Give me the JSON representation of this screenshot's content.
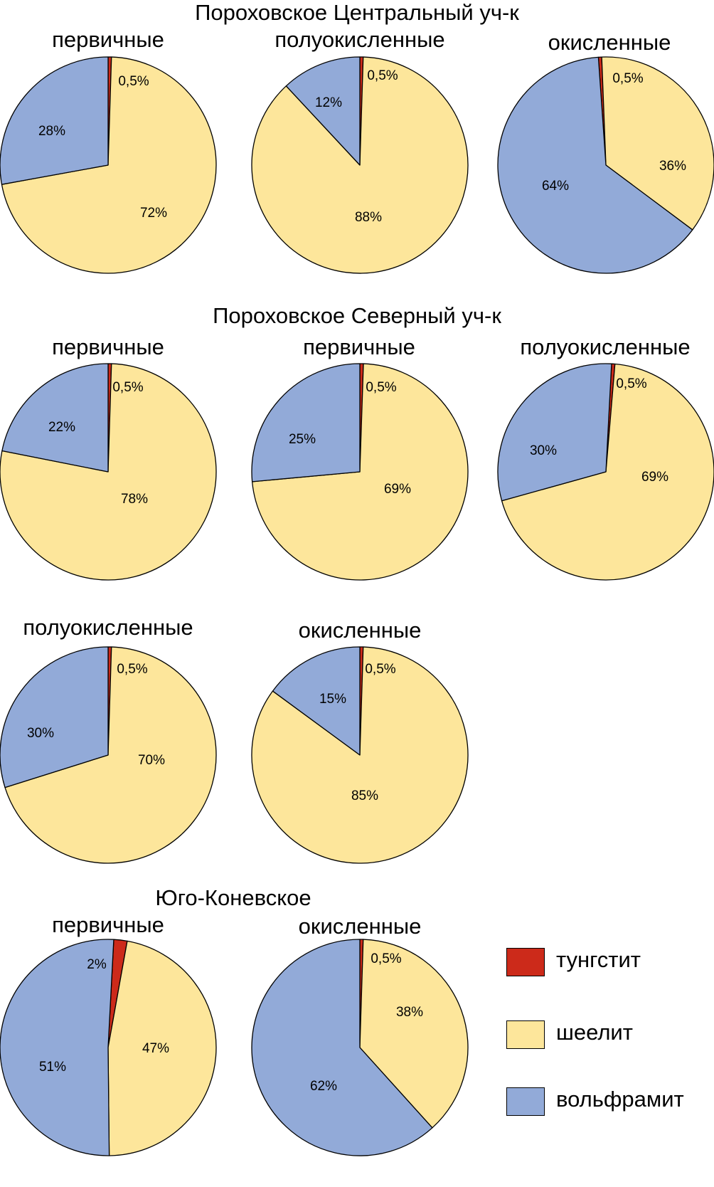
{
  "colors": {
    "tungstite": "#cc2a1a",
    "scheelite": "#fde69b",
    "wolframite": "#92aad8",
    "outline": "#000000"
  },
  "sections": [
    {
      "title": "Пороховское Центральный уч-к"
    },
    {
      "title": "Пороховское Северный уч-к"
    },
    {
      "title": "Юго-Коневское"
    }
  ],
  "legend": [
    {
      "key": "tungstite",
      "label": "тунгстит"
    },
    {
      "key": "scheelite",
      "label": "шеелит"
    },
    {
      "key": "wolframite",
      "label": "вольфрамит"
    }
  ],
  "chart_data": [
    {
      "type": "pie",
      "section": "Пороховское Центральный уч-к",
      "title": "первичные",
      "slices": [
        {
          "key": "tungstite",
          "value": 0.5,
          "label": "0,5%"
        },
        {
          "key": "scheelite",
          "value": 72,
          "label": "72%"
        },
        {
          "key": "wolframite",
          "value": 28,
          "label": "28%"
        }
      ]
    },
    {
      "type": "pie",
      "section": "Пороховское Центральный уч-к",
      "title": "полуокисленные",
      "slices": [
        {
          "key": "tungstite",
          "value": 0.5,
          "label": "0,5%"
        },
        {
          "key": "scheelite",
          "value": 88,
          "label": "88%"
        },
        {
          "key": "wolframite",
          "value": 12,
          "label": "12%"
        }
      ]
    },
    {
      "type": "pie",
      "section": "Пороховское Центральный уч-к",
      "title": "окисленные",
      "slices": [
        {
          "key": "tungstite",
          "value": 0.5,
          "label": "0,5%"
        },
        {
          "key": "scheelite",
          "value": 36,
          "label": "36%"
        },
        {
          "key": "wolframite",
          "value": 64,
          "label": "64%"
        }
      ]
    },
    {
      "type": "pie",
      "section": "Пороховское Северный уч-к",
      "title": "первичные",
      "slices": [
        {
          "key": "tungstite",
          "value": 0.5,
          "label": "0,5%"
        },
        {
          "key": "scheelite",
          "value": 78,
          "label": "78%"
        },
        {
          "key": "wolframite",
          "value": 22,
          "label": "22%"
        }
      ]
    },
    {
      "type": "pie",
      "section": "Пороховское Северный уч-к",
      "title": "первичные",
      "slices": [
        {
          "key": "tungstite",
          "value": 0.5,
          "label": "0,5%"
        },
        {
          "key": "scheelite",
          "value": 69,
          "label": "69%"
        },
        {
          "key": "wolframite",
          "value": 25,
          "label": "25%"
        }
      ]
    },
    {
      "type": "pie",
      "section": "Пороховское Северный уч-к",
      "title": "полуокисленные",
      "slices": [
        {
          "key": "tungstite",
          "value": 0.5,
          "label": "0,5%"
        },
        {
          "key": "scheelite",
          "value": 69,
          "label": "69%"
        },
        {
          "key": "wolframite",
          "value": 30,
          "label": "30%"
        }
      ]
    },
    {
      "type": "pie",
      "section": "Пороховское Северный уч-к",
      "title": "полуокисленные",
      "slices": [
        {
          "key": "tungstite",
          "value": 0.5,
          "label": "0,5%"
        },
        {
          "key": "scheelite",
          "value": 70,
          "label": "70%"
        },
        {
          "key": "wolframite",
          "value": 30,
          "label": "30%"
        }
      ]
    },
    {
      "type": "pie",
      "section": "Пороховское Северный уч-к",
      "title": "окисленные",
      "slices": [
        {
          "key": "tungstite",
          "value": 0.5,
          "label": "0,5%"
        },
        {
          "key": "scheelite",
          "value": 85,
          "label": "85%"
        },
        {
          "key": "wolframite",
          "value": 15,
          "label": "15%"
        }
      ]
    },
    {
      "type": "pie",
      "section": "Юго-Коневское",
      "title": "первичные",
      "slices": [
        {
          "key": "tungstite",
          "value": 2,
          "label": "2%"
        },
        {
          "key": "scheelite",
          "value": 47,
          "label": "47%"
        },
        {
          "key": "wolframite",
          "value": 51,
          "label": "51%"
        }
      ]
    },
    {
      "type": "pie",
      "section": "Юго-Коневское",
      "title": "окисленные",
      "slices": [
        {
          "key": "tungstite",
          "value": 0.5,
          "label": "0,5%"
        },
        {
          "key": "scheelite",
          "value": 38,
          "label": "38%"
        },
        {
          "key": "wolframite",
          "value": 62,
          "label": "62%"
        }
      ]
    }
  ]
}
